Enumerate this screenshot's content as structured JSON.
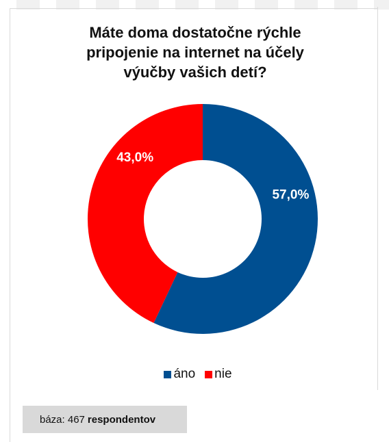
{
  "colors": {
    "ano": "#004f91",
    "nie": "#ff0000",
    "base_box": "#d9d9d9"
  },
  "chart_data": {
    "type": "pie",
    "variant": "donut",
    "title": "Máte doma dostatočne rýchle pripojenie na internet na účely výučby vašich detí?",
    "title_lines": [
      "Máte doma dostatočne rýchle",
      "pripojenie na internet na účely",
      "výučby vašich detí?"
    ],
    "categories": [
      "áno",
      "nie"
    ],
    "values": [
      57.0,
      43.0
    ],
    "labels": [
      "57,0%",
      "43,0%"
    ],
    "colors": [
      "#004f91",
      "#ff0000"
    ],
    "legend_position": "bottom",
    "unit": "%"
  },
  "legend": {
    "items": [
      {
        "label": "áno",
        "color": "#004f91"
      },
      {
        "label": "nie",
        "color": "#ff0000"
      }
    ]
  },
  "base": {
    "prefix": "báza: 467",
    "bold": "respondentov"
  }
}
